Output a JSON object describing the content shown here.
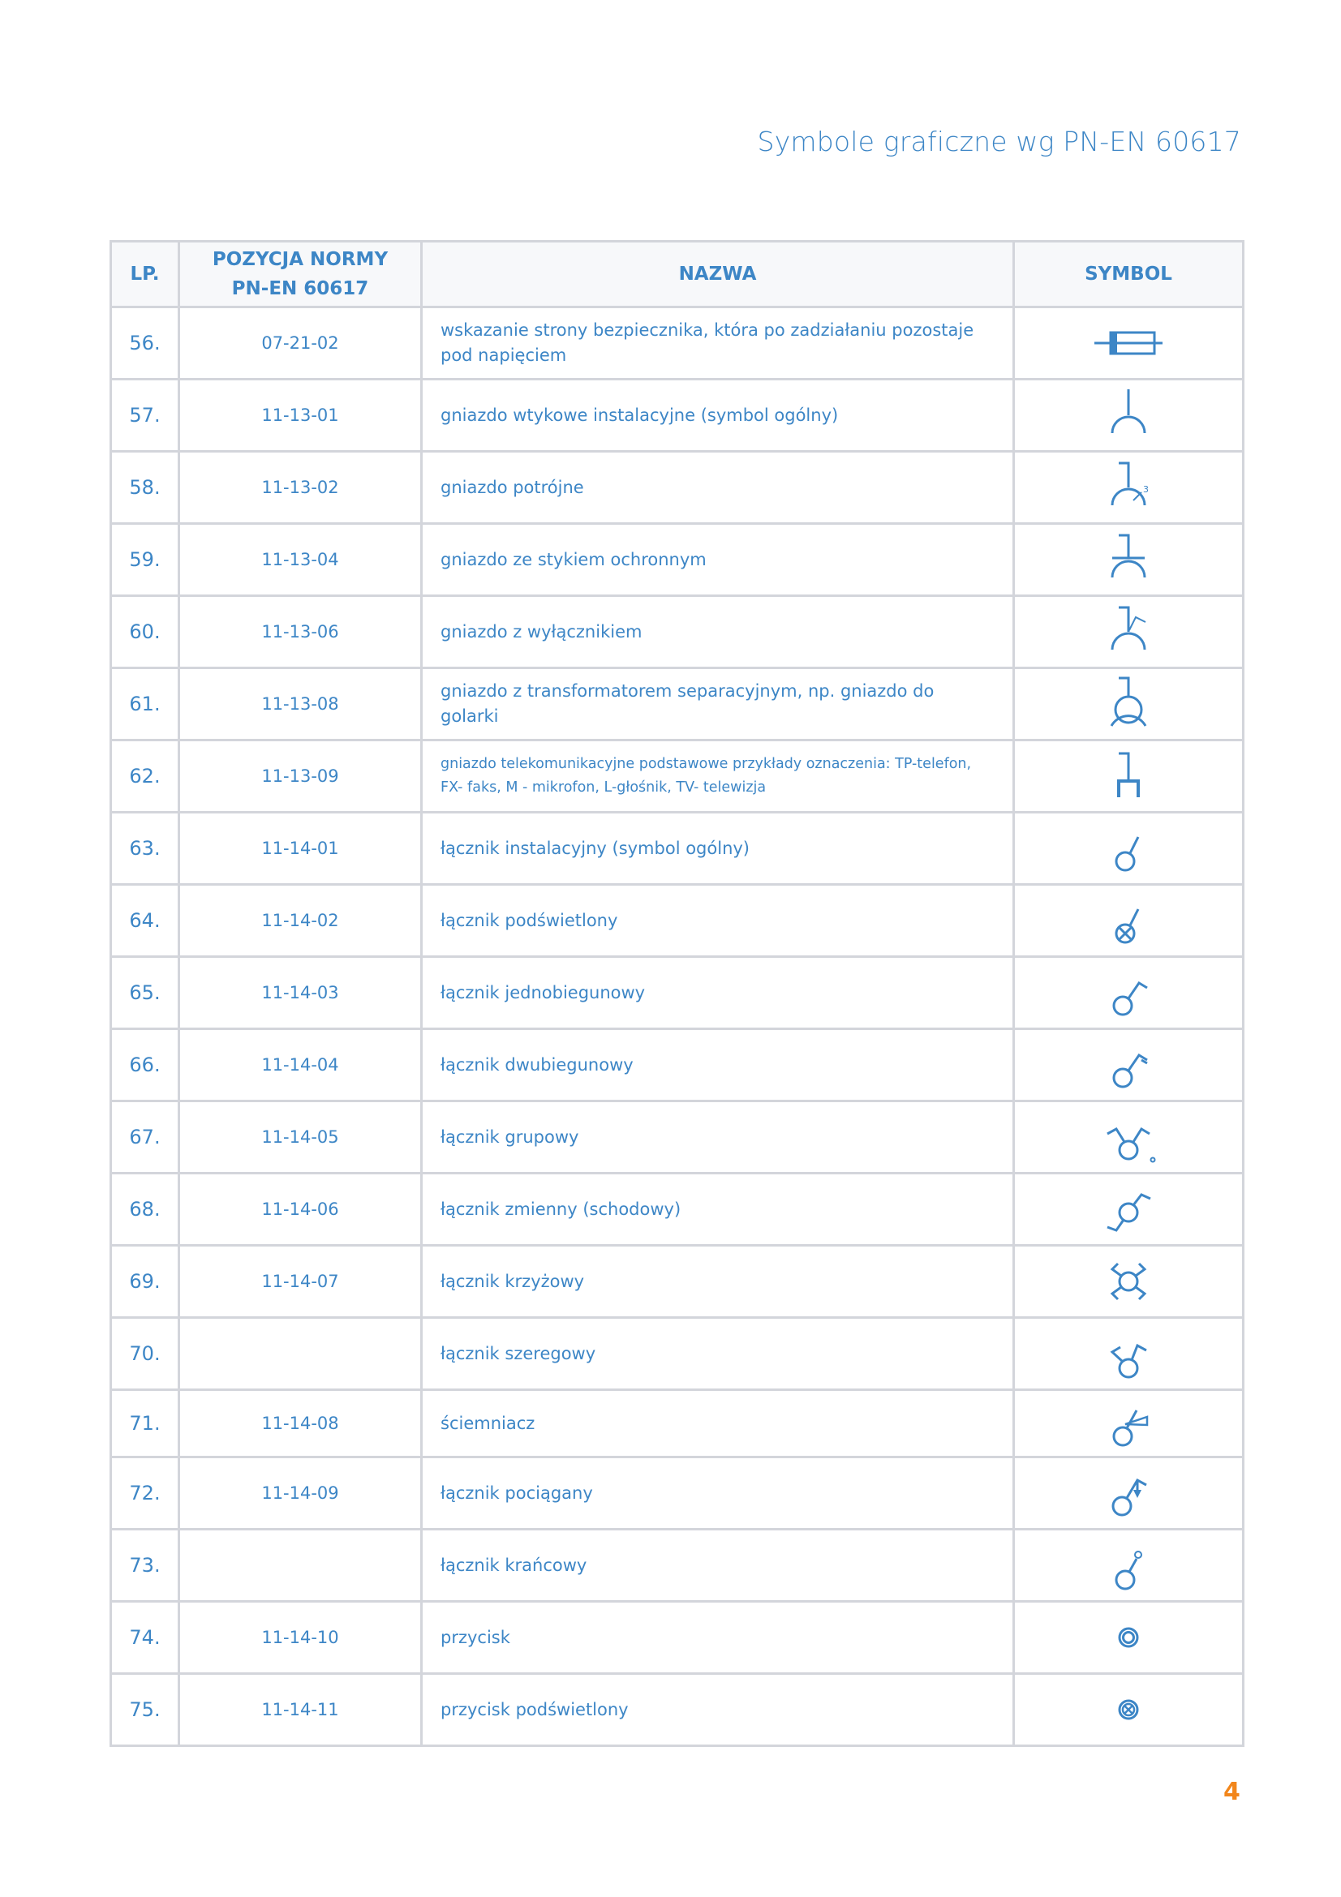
{
  "page": {
    "title": "Symbole graficzne wg PN-EN 60617",
    "page_number": "4"
  },
  "colors": {
    "primary": "#3d86c6",
    "accent": "#f2861b",
    "border": "#d3d5db",
    "header_bg": "#f7f8fa"
  },
  "table": {
    "headers": {
      "lp": "LP.",
      "position_line1": "POZYCJA NORMY",
      "position_line2": "PN-EN 60617",
      "name": "NAZWA",
      "symbol": "SYMBOL"
    },
    "rows": [
      {
        "lp": "56.",
        "position": "07-21-02",
        "name": "wskazanie strony bezpiecznika, która po zadziałaniu pozostaje pod napięciem",
        "symbol": "fuse-live-side-icon"
      },
      {
        "lp": "57.",
        "position": "11-13-01",
        "name": "gniazdo wtykowe instalacyjne (symbol ogólny)",
        "symbol": "socket-icon"
      },
      {
        "lp": "58.",
        "position": "11-13-02",
        "name": "gniazdo potrójne",
        "symbol": "triple-socket-icon",
        "symbol_label": "3"
      },
      {
        "lp": "59.",
        "position": "11-13-04",
        "name": "gniazdo ze stykiem ochronnym",
        "symbol": "socket-protective-contact-icon"
      },
      {
        "lp": "60.",
        "position": "11-13-06",
        "name": "gniazdo z wyłącznikiem",
        "symbol": "socket-with-switch-icon"
      },
      {
        "lp": "61.",
        "position": "11-13-08",
        "name": "gniazdo z transformatorem separacyjnym, np. gniazdo do golarki",
        "symbol": "socket-isolating-transformer-icon"
      },
      {
        "lp": "62.",
        "position": "11-13-09",
        "name": "gniazdo telekomunikacyjne podstawowe przykłady oznaczenia: TP-telefon, FX- faks, M - mikrofon, L-głośnik, TV- telewizja",
        "symbol": "telecom-socket-icon",
        "small": true
      },
      {
        "lp": "63.",
        "position": "11-14-01",
        "name": "łącznik instalacyjny (symbol ogólny)",
        "symbol": "switch-icon"
      },
      {
        "lp": "64.",
        "position": "11-14-02",
        "name": "łącznik podświetlony",
        "symbol": "illuminated-switch-icon"
      },
      {
        "lp": "65.",
        "position": "11-14-03",
        "name": "łącznik jednobiegunowy",
        "symbol": "single-pole-switch-icon"
      },
      {
        "lp": "66.",
        "position": "11-14-04",
        "name": "łącznik dwubiegunowy",
        "symbol": "double-pole-switch-icon"
      },
      {
        "lp": "67.",
        "position": "11-14-05",
        "name": "łącznik grupowy",
        "symbol": "group-switch-icon"
      },
      {
        "lp": "68.",
        "position": "11-14-06",
        "name": "łącznik zmienny (schodowy)",
        "symbol": "two-way-switch-icon"
      },
      {
        "lp": "69.",
        "position": "11-14-07",
        "name": "łącznik krzyżowy",
        "symbol": "cross-switch-icon"
      },
      {
        "lp": "70.",
        "position": "",
        "name": "łącznik szeregowy",
        "symbol": "series-switch-icon"
      },
      {
        "lp": "71.",
        "position": "11-14-08",
        "name": "ściemniacz",
        "symbol": "dimmer-icon",
        "short": true
      },
      {
        "lp": "72.",
        "position": "11-14-09",
        "name": "łącznik pociągany",
        "symbol": "pull-switch-icon"
      },
      {
        "lp": "73.",
        "position": "",
        "name": "łącznik krańcowy",
        "symbol": "limit-switch-icon"
      },
      {
        "lp": "74.",
        "position": "11-14-10",
        "name": "przycisk",
        "symbol": "push-button-icon"
      },
      {
        "lp": "75.",
        "position": "11-14-11",
        "name": "przycisk podświetlony",
        "symbol": "illuminated-push-button-icon"
      }
    ]
  }
}
